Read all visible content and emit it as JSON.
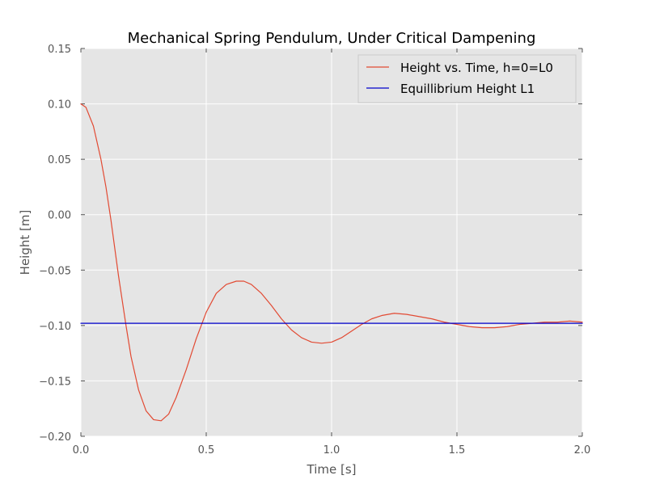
{
  "chart_data": {
    "type": "line",
    "title": "Mechanical Spring Pendulum, Under Critical Dampening",
    "xlabel": "Time [s]",
    "ylabel": "Height [m]",
    "xlim": [
      0.0,
      2.0
    ],
    "ylim": [
      -0.2,
      0.15
    ],
    "x_ticks": [
      "0.0",
      "0.5",
      "1.0",
      "1.5",
      "2.0"
    ],
    "y_ticks": [
      "0.15",
      "0.10",
      "0.05",
      "0.00",
      "−0.05",
      "−0.10",
      "−0.15",
      "−0.20"
    ],
    "grid": true,
    "legend_position": "top-right",
    "series": [
      {
        "name": "Height vs. Time, h=0=L0",
        "color": "#e24a33",
        "x": [
          0.0,
          0.02,
          0.05,
          0.08,
          0.1,
          0.12,
          0.15,
          0.18,
          0.2,
          0.23,
          0.26,
          0.29,
          0.32,
          0.35,
          0.38,
          0.42,
          0.46,
          0.5,
          0.54,
          0.58,
          0.62,
          0.65,
          0.68,
          0.72,
          0.76,
          0.8,
          0.84,
          0.88,
          0.92,
          0.96,
          1.0,
          1.04,
          1.08,
          1.12,
          1.16,
          1.2,
          1.25,
          1.3,
          1.35,
          1.4,
          1.45,
          1.5,
          1.55,
          1.6,
          1.65,
          1.7,
          1.75,
          1.8,
          1.85,
          1.9,
          1.95,
          2.0
        ],
        "values": [
          0.1,
          0.097,
          0.08,
          0.05,
          0.025,
          -0.005,
          -0.055,
          -0.1,
          -0.128,
          -0.158,
          -0.177,
          -0.185,
          -0.186,
          -0.18,
          -0.165,
          -0.14,
          -0.112,
          -0.088,
          -0.071,
          -0.063,
          -0.06,
          -0.06,
          -0.063,
          -0.071,
          -0.082,
          -0.094,
          -0.104,
          -0.111,
          -0.115,
          -0.116,
          -0.115,
          -0.111,
          -0.105,
          -0.099,
          -0.094,
          -0.091,
          -0.089,
          -0.09,
          -0.092,
          -0.094,
          -0.097,
          -0.099,
          -0.101,
          -0.102,
          -0.102,
          -0.101,
          -0.099,
          -0.098,
          -0.097,
          -0.097,
          -0.096,
          -0.097
        ]
      },
      {
        "name": "Equillibrium Height L1",
        "color": "#0000cc",
        "x": [
          0.0,
          2.0
        ],
        "values": [
          -0.098,
          -0.098
        ]
      }
    ]
  }
}
